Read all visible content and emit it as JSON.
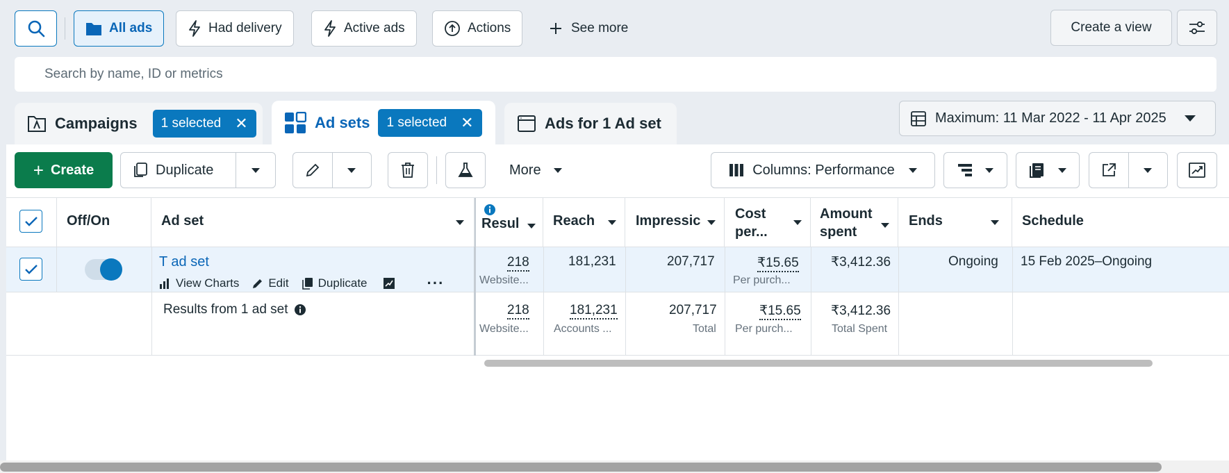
{
  "filters": {
    "all_ads": "All ads",
    "had_delivery": "Had delivery",
    "active_ads": "Active ads",
    "actions": "Actions",
    "see_more": "See more",
    "create_view": "Create a view"
  },
  "search": {
    "placeholder": "Search by name, ID or metrics"
  },
  "tabs": {
    "campaigns": "Campaigns",
    "campaigns_chip": "1 selected",
    "adsets": "Ad sets",
    "adsets_chip": "1 selected",
    "ads": "Ads for 1 Ad set"
  },
  "date_range": "Maximum: 11 Mar 2022 - 11 Apr 2025",
  "toolbar": {
    "create": "Create",
    "duplicate": "Duplicate",
    "more": "More",
    "columns": "Columns: Performance"
  },
  "table": {
    "headers": {
      "offon": "Off/On",
      "adset": "Ad set",
      "results": "Resul",
      "reach": "Reach",
      "impressions": "Impressic",
      "cost_1": "Cost",
      "cost_2": "per...",
      "amount_1": "Amount",
      "amount_2": "spent",
      "ends": "Ends",
      "schedule": "Schedule"
    },
    "row": {
      "name": "T ad set",
      "view_charts": "View Charts",
      "edit": "Edit",
      "duplicate": "Duplicate",
      "results": "218",
      "results_sub": "Website...",
      "reach": "181,231",
      "impressions": "207,717",
      "cost": "₹15.65",
      "cost_sub": "Per purch...",
      "amount": "₹3,412.36",
      "ends": "Ongoing",
      "schedule": "15 Feb 2025–Ongoing"
    },
    "summary": {
      "label": "Results from 1 ad set",
      "results": "218",
      "results_sub": "Website...",
      "reach": "181,231",
      "reach_sub": "Accounts ...",
      "impressions": "207,717",
      "impressions_sub": "Total",
      "cost": "₹15.65",
      "cost_sub": "Per purch...",
      "amount": "₹3,412.36",
      "amount_sub": "Total Spent"
    }
  },
  "colors": {
    "accent": "#0a78be",
    "create": "#0b7c4c",
    "selected_row": "#eaf3fc"
  }
}
